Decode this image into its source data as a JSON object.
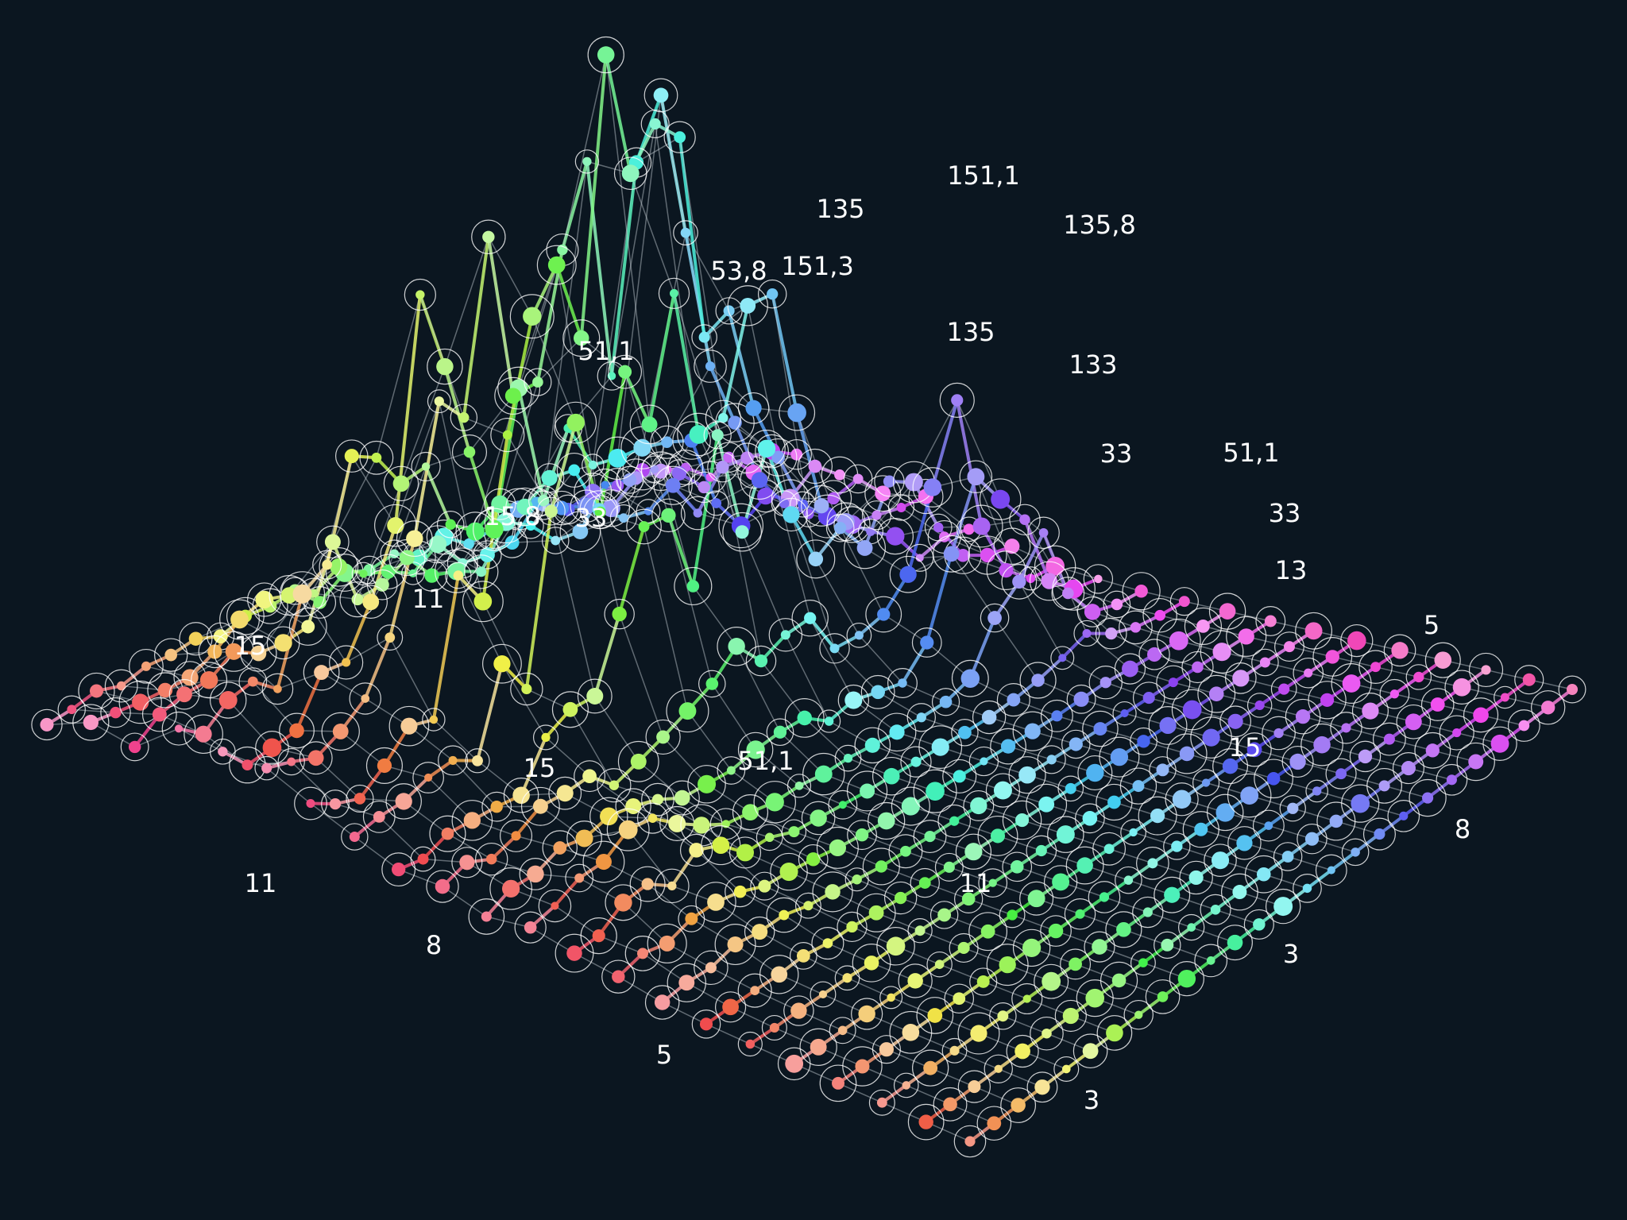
{
  "labels": [
    "151,1",
    "135",
    "135,8",
    "53,8",
    "151,3",
    "51,1",
    "135",
    "133",
    "33",
    "51,1",
    "15,8",
    "33",
    "33",
    "13",
    "11",
    "15",
    "5",
    "15",
    "51,1",
    "15",
    "8",
    "11",
    "11",
    "8",
    "3",
    "5",
    "3"
  ]
}
